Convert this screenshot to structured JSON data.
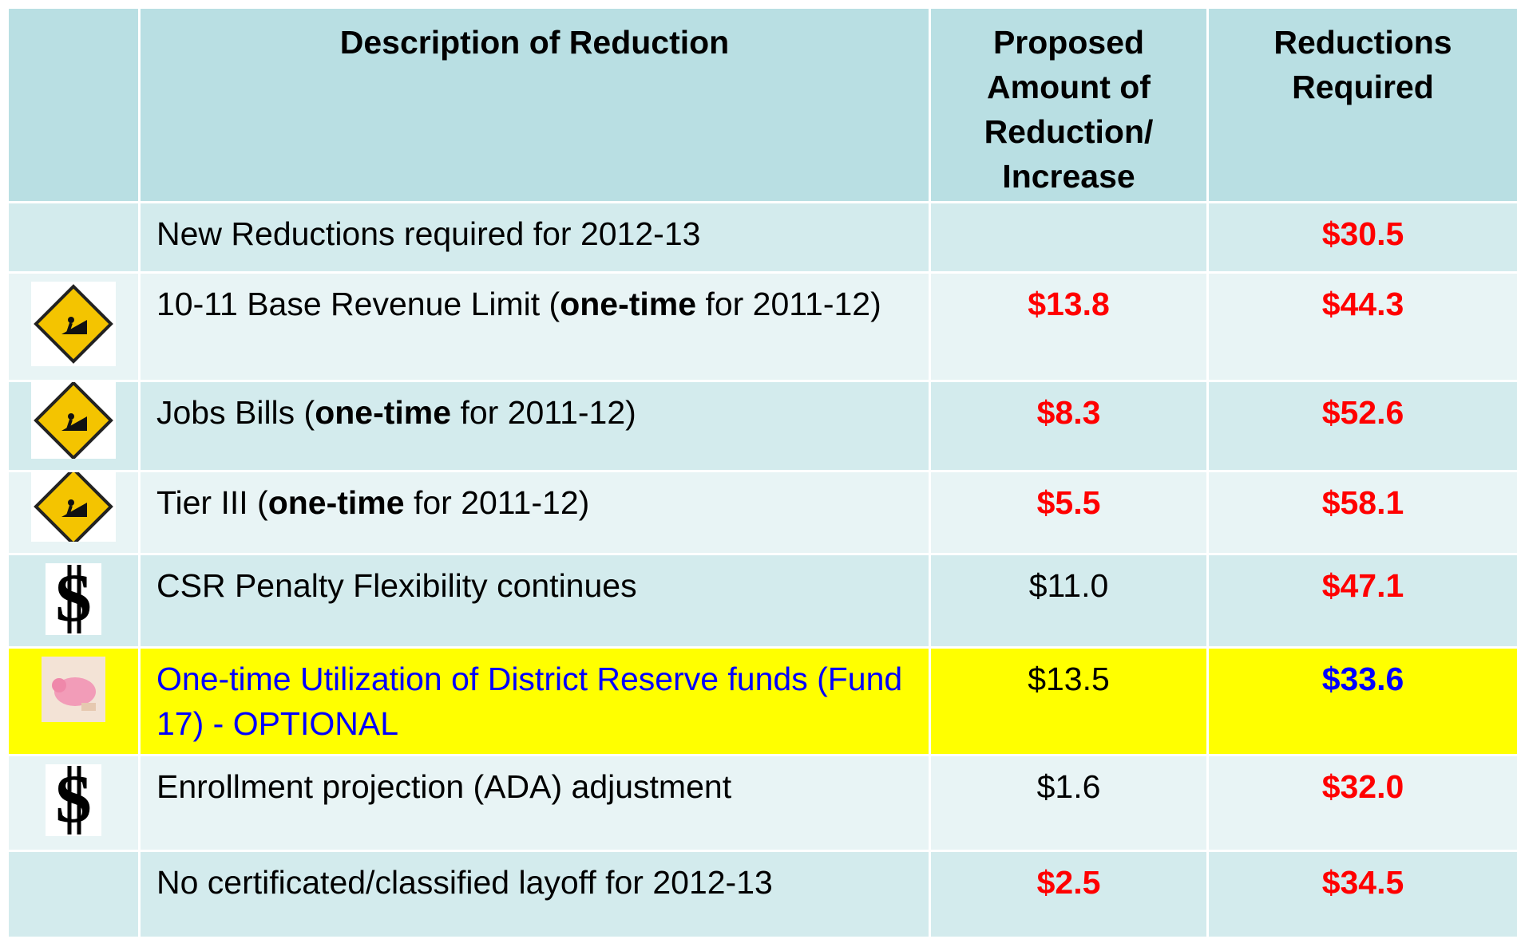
{
  "table": {
    "header": [
      "Description of Reduction",
      "Proposed Amount of Reduction/ Increase",
      "Reductions Required"
    ],
    "rows": [
      {
        "description": [
          "New Reductions required for 2012-13"
        ],
        "required": "$30.5"
      },
      {
        "description": [
          "10-11 Base Revenue Limit (",
          "one-time",
          " for 2011-12)"
        ],
        "proposed": "$13.8",
        "required": "$44.3"
      },
      {
        "description": [
          "Jobs Bills (",
          "one-time",
          " for 2011-12)"
        ],
        "proposed": "$8.3",
        "required": "$52.6"
      },
      {
        "description": [
          "Tier III (",
          "one-time",
          " for 2011-12)"
        ],
        "proposed": "$5.5",
        "required": "$58.1"
      },
      {
        "description": [
          "CSR Penalty Flexibility continues"
        ],
        "proposed": "$11.0",
        "required": "$47.1"
      },
      {
        "description": [
          "One-time Utilization of District Reserve funds (Fund 17) - OPTIONAL"
        ],
        "proposed": "$13.5",
        "required": "$33.6"
      },
      {
        "description": [
          "Enrollment projection (ADA) adjustment"
        ],
        "proposed": "$1.6",
        "required": "$32.0"
      },
      {
        "description": [
          "No certificated/classified layoff for 2012-13"
        ],
        "proposed": "$2.5",
        "required": "$34.5"
      }
    ]
  }
}
